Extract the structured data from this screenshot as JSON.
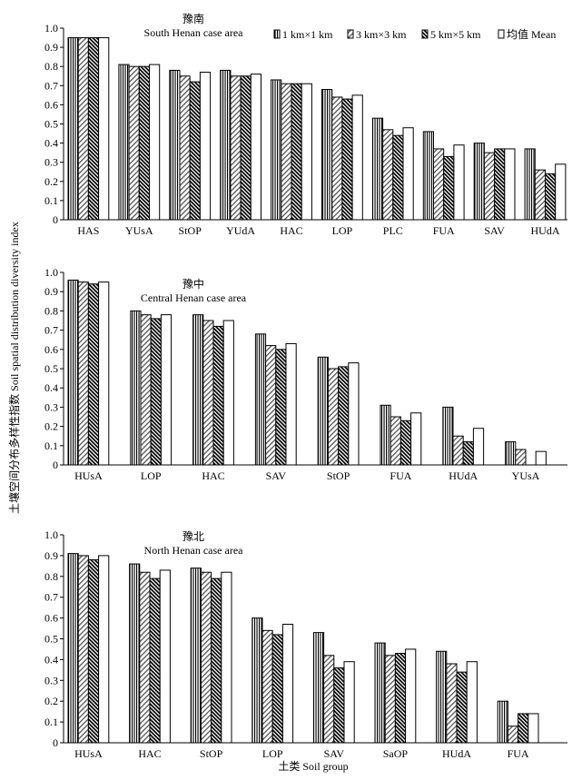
{
  "figure": {
    "ylabel": "土壤空间分布多样性指数 Soil spatial distribution diversity index",
    "xlabel": "土类 Soil group"
  },
  "legend": [
    {
      "label": "1 km×1 km",
      "pattern": "vertical-lines"
    },
    {
      "label": "3 km×3 km",
      "pattern": "diagonal-lines"
    },
    {
      "label": "5 km×5 km",
      "pattern": "dense-diagonal"
    },
    {
      "label": "均值 Mean",
      "pattern": "white"
    }
  ],
  "chart_data": [
    {
      "type": "bar",
      "title": "豫南",
      "subtitle": "South Henan case area",
      "ylim": [
        0,
        1.0
      ],
      "yticks": [
        "0",
        "0.1",
        "0.2",
        "0.3",
        "0.4",
        "0.5",
        "0.6",
        "0.7",
        "0.8",
        "0.9",
        "1.0"
      ],
      "categories": [
        "HAS",
        "YUsA",
        "StOP",
        "YUdA",
        "HAC",
        "LOP",
        "PLC",
        "FUA",
        "SAV",
        "HUdA"
      ],
      "series": [
        {
          "name": "1 km×1 km",
          "values": [
            0.95,
            0.81,
            0.78,
            0.78,
            0.73,
            0.68,
            0.53,
            0.46,
            0.4,
            0.37
          ]
        },
        {
          "name": "3 km×3 km",
          "values": [
            0.95,
            0.8,
            0.75,
            0.75,
            0.71,
            0.64,
            0.47,
            0.37,
            0.35,
            0.26
          ]
        },
        {
          "name": "5 km×5 km",
          "values": [
            0.95,
            0.8,
            0.72,
            0.75,
            0.71,
            0.63,
            0.44,
            0.33,
            0.37,
            0.24
          ]
        },
        {
          "name": "均值 Mean",
          "values": [
            0.95,
            0.81,
            0.77,
            0.76,
            0.71,
            0.65,
            0.48,
            0.39,
            0.37,
            0.29
          ]
        }
      ]
    },
    {
      "type": "bar",
      "title": "豫中",
      "subtitle": "Central Henan case area",
      "ylim": [
        0,
        1.0
      ],
      "yticks": [
        "0",
        "0.1",
        "0.2",
        "0.3",
        "0.4",
        "0.5",
        "0.6",
        "0.7",
        "0.8",
        "0.9",
        "1.0"
      ],
      "categories": [
        "HUsA",
        "LOP",
        "HAC",
        "SAV",
        "StOP",
        "FUA",
        "HUdA",
        "YUsA"
      ],
      "series": [
        {
          "name": "1 km×1 km",
          "values": [
            0.96,
            0.8,
            0.78,
            0.68,
            0.56,
            0.31,
            0.3,
            0.12
          ]
        },
        {
          "name": "3 km×3 km",
          "values": [
            0.95,
            0.78,
            0.75,
            0.62,
            0.5,
            0.25,
            0.15,
            0.08
          ]
        },
        {
          "name": "5 km×5 km",
          "values": [
            0.94,
            0.76,
            0.72,
            0.6,
            0.51,
            0.23,
            0.12,
            0.0
          ]
        },
        {
          "name": "均值 Mean",
          "values": [
            0.95,
            0.78,
            0.75,
            0.63,
            0.53,
            0.27,
            0.19,
            0.07
          ]
        }
      ]
    },
    {
      "type": "bar",
      "title": "豫北",
      "subtitle": "North Henan case area",
      "ylim": [
        0,
        1.0
      ],
      "yticks": [
        "0",
        "0.1",
        "0.2",
        "0.3",
        "0.4",
        "0.5",
        "0.6",
        "0.7",
        "0.8",
        "0.9",
        "1.0"
      ],
      "categories": [
        "HUsA",
        "HAC",
        "StOP",
        "LOP",
        "SAV",
        "SaOP",
        "HUdA",
        "FUA"
      ],
      "series": [
        {
          "name": "1 km×1 km",
          "values": [
            0.91,
            0.86,
            0.84,
            0.6,
            0.53,
            0.48,
            0.44,
            0.2
          ]
        },
        {
          "name": "3 km×3 km",
          "values": [
            0.9,
            0.82,
            0.82,
            0.54,
            0.42,
            0.42,
            0.38,
            0.08
          ]
        },
        {
          "name": "5 km×5 km",
          "values": [
            0.88,
            0.79,
            0.79,
            0.52,
            0.36,
            0.43,
            0.34,
            0.14
          ]
        },
        {
          "name": "均值 Mean",
          "values": [
            0.9,
            0.83,
            0.82,
            0.57,
            0.39,
            0.45,
            0.39,
            0.14
          ]
        }
      ]
    }
  ]
}
